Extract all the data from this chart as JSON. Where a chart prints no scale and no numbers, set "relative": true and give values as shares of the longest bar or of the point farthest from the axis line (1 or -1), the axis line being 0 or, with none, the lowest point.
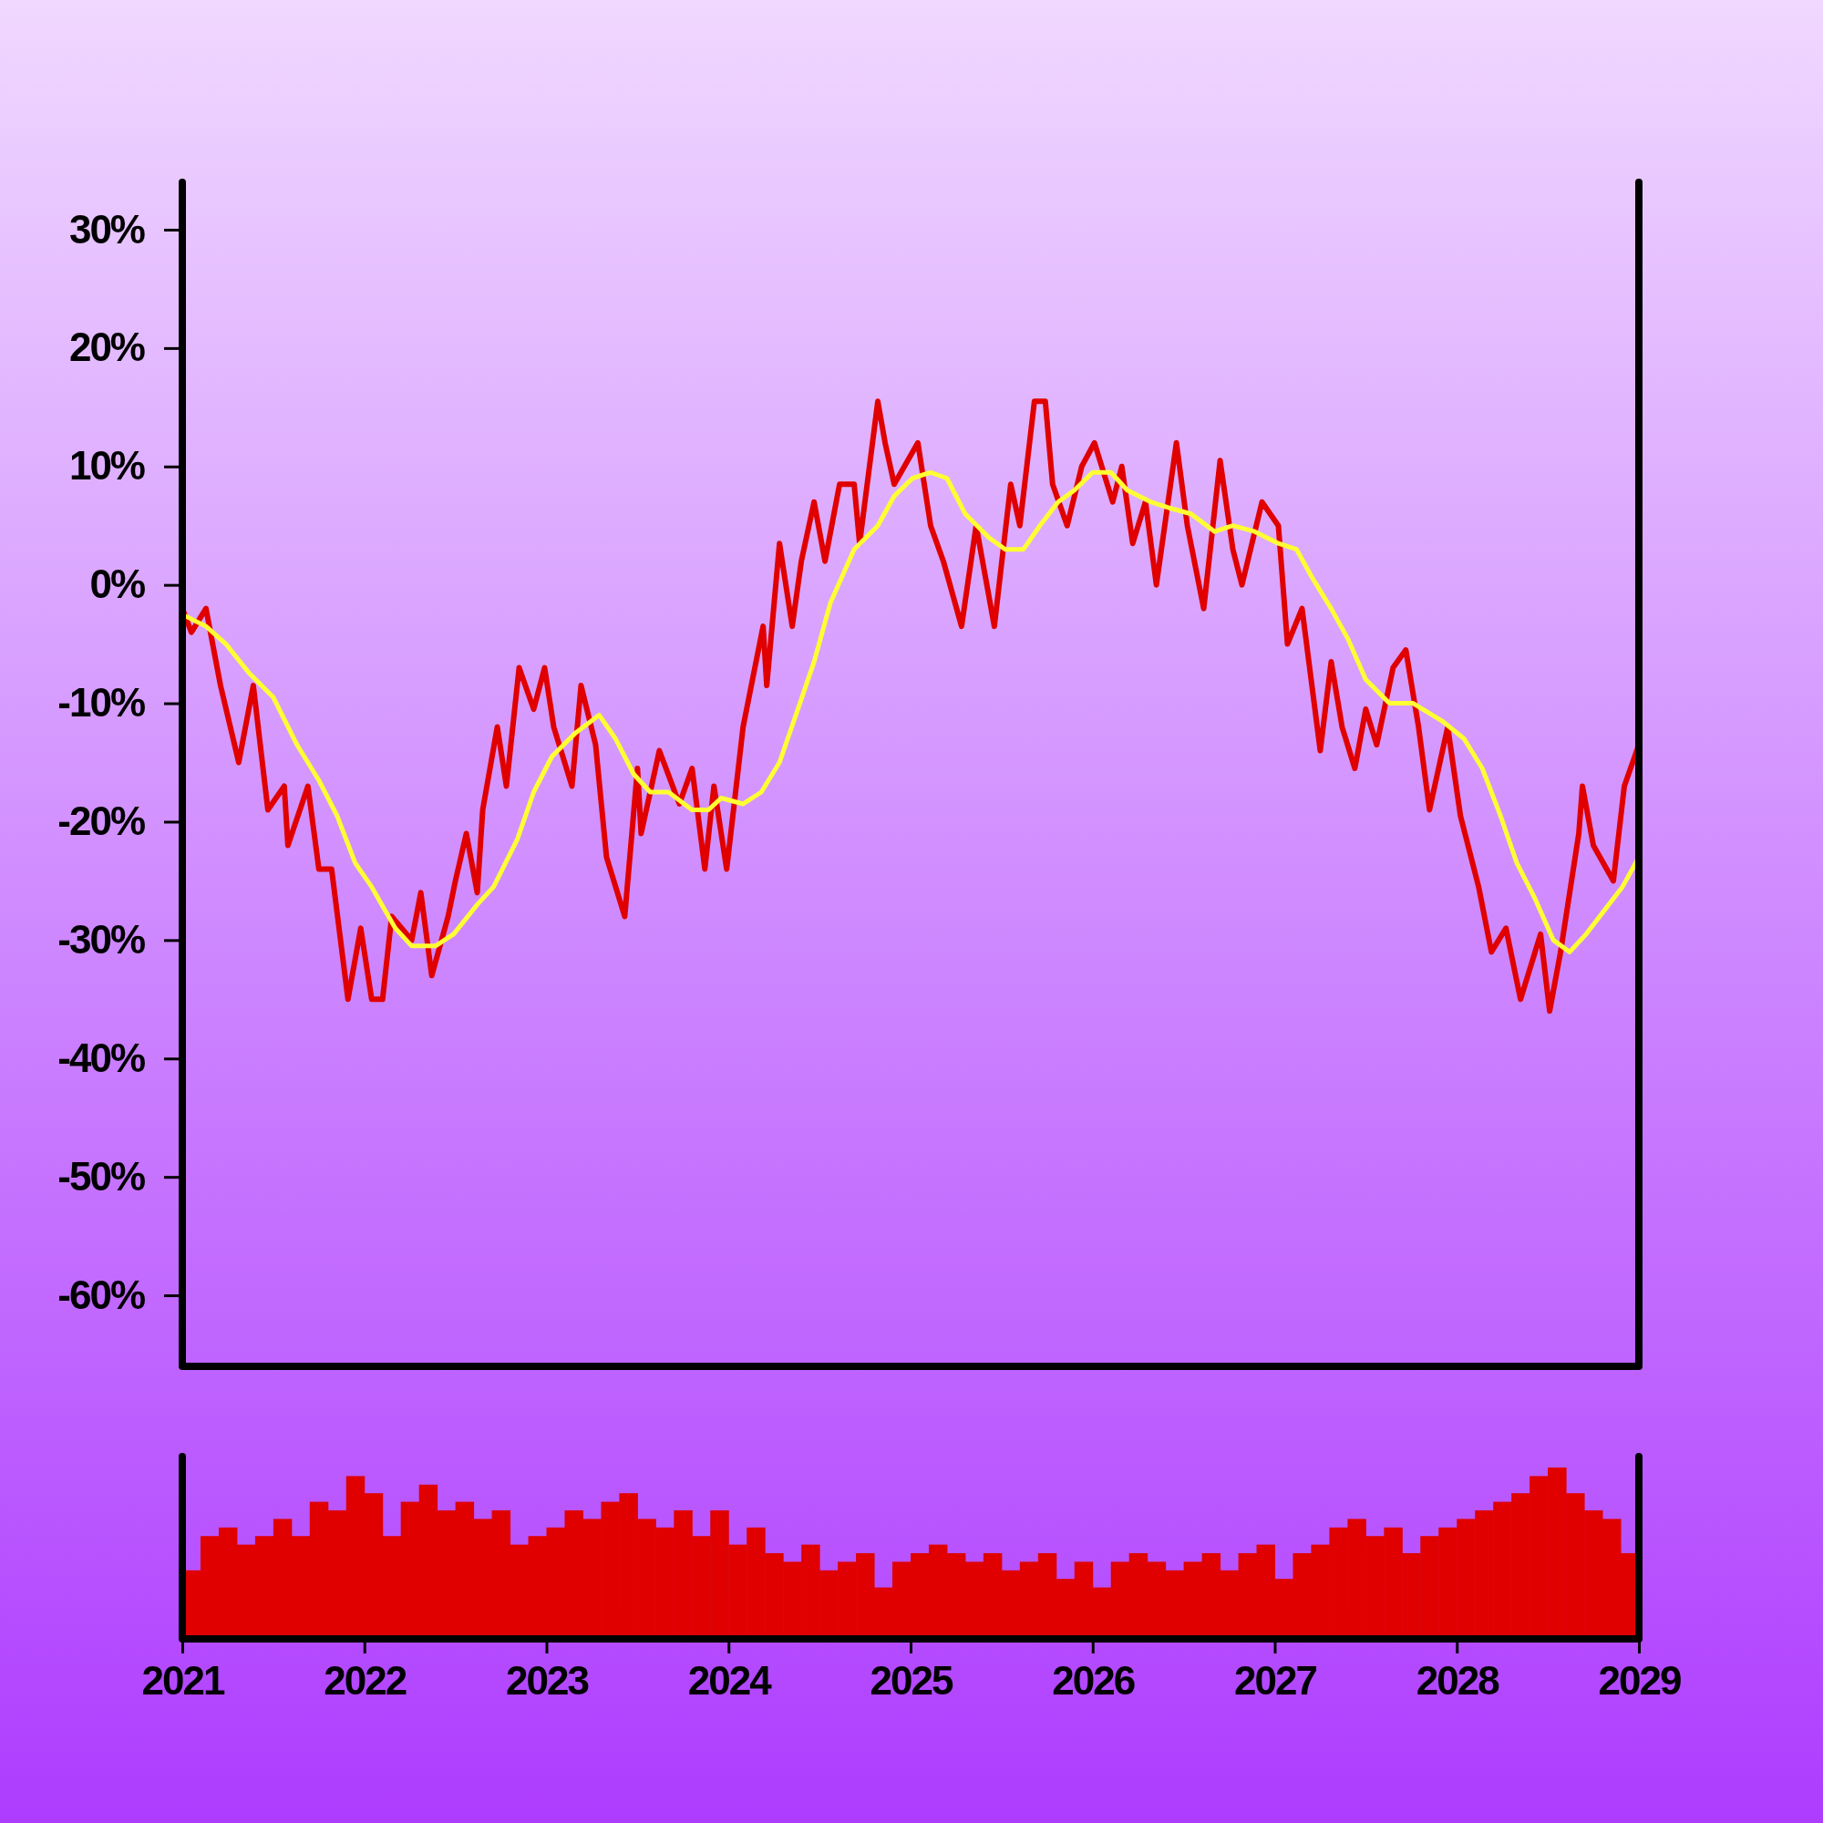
{
  "chart_data": [
    {
      "type": "line",
      "xlim": [
        2021,
        2029
      ],
      "ylim": [
        -66,
        34
      ],
      "yticks": [
        {
          "value": 30,
          "label": "30%"
        },
        {
          "value": 20,
          "label": "20%"
        },
        {
          "value": 10,
          "label": "10%"
        },
        {
          "value": 0,
          "label": "0%"
        },
        {
          "value": -10,
          "label": "-10%"
        },
        {
          "value": -20,
          "label": "-20%"
        },
        {
          "value": -30,
          "label": "-30%"
        },
        {
          "value": -40,
          "label": "-40%"
        },
        {
          "value": -50,
          "label": "-50%"
        },
        {
          "value": -60,
          "label": "-60%"
        }
      ],
      "tick_labels": "y",
      "grid": false,
      "marker": "none",
      "line_style": "solid",
      "series": [
        {
          "color": "#e00000",
          "x": [
            2021.0,
            2021.05,
            2021.13,
            2021.21,
            2021.31,
            2021.39,
            2021.47,
            2021.56,
            2021.58,
            2021.69,
            2021.75,
            2021.82,
            2021.91,
            2021.98,
            2022.04,
            2022.1,
            2022.15,
            2022.26,
            2022.31,
            2022.37,
            2022.46,
            2022.5,
            2022.56,
            2022.62,
            2022.65,
            2022.73,
            2022.78,
            2022.85,
            2022.93,
            2022.99,
            2023.04,
            2023.14,
            2023.19,
            2023.27,
            2023.33,
            2023.43,
            2023.5,
            2023.52,
            2023.62,
            2023.73,
            2023.8,
            2023.87,
            2023.92,
            2023.99,
            2024.08,
            2024.19,
            2024.21,
            2024.28,
            2024.35,
            2024.4,
            2024.47,
            2024.53,
            2024.61,
            2024.69,
            2024.72,
            2024.82,
            2024.86,
            2024.91,
            2025.04,
            2025.11,
            2025.18,
            2025.28,
            2025.36,
            2025.46,
            2025.55,
            2025.6,
            2025.68,
            2025.74,
            2025.78,
            2025.86,
            2025.94,
            2026.01,
            2026.11,
            2026.16,
            2026.22,
            2026.29,
            2026.35,
            2026.46,
            2026.52,
            2026.61,
            2026.7,
            2026.77,
            2026.82,
            2026.93,
            2027.02,
            2027.07,
            2027.15,
            2027.25,
            2027.31,
            2027.37,
            2027.44,
            2027.5,
            2027.56,
            2027.65,
            2027.72,
            2027.79,
            2027.85,
            2027.95,
            2028.02,
            2028.12,
            2028.19,
            2028.27,
            2028.35,
            2028.46,
            2028.51,
            2028.57,
            2028.67,
            2028.69,
            2028.75,
            2028.86,
            2028.92,
            2029.0
          ],
          "values": [
            -2,
            -4,
            -2,
            -8.5,
            -15,
            -8.5,
            -19,
            -17,
            -22,
            -17,
            -24,
            -24,
            -35,
            -29,
            -35,
            -35,
            -28,
            -30,
            -26,
            -33,
            -28,
            -25,
            -21,
            -26,
            -19,
            -12,
            -17,
            -7,
            -10.5,
            -7,
            -12,
            -17,
            -8.5,
            -13.5,
            -23,
            -28,
            -15.5,
            -21,
            -14,
            -18.5,
            -15.5,
            -24,
            -17,
            -24,
            -12,
            -3.5,
            -8.5,
            3.5,
            -3.5,
            2,
            7,
            2,
            8.5,
            8.5,
            3.5,
            15.5,
            12,
            8.5,
            12,
            5,
            2,
            -3.5,
            5,
            -3.5,
            8.5,
            5,
            15.5,
            15.5,
            8.5,
            5,
            10,
            12,
            7,
            10,
            3.5,
            7,
            0,
            12,
            5,
            -2,
            10.5,
            3,
            0,
            7,
            5,
            -5,
            -2,
            -14,
            -6.5,
            -12,
            -15.5,
            -10.5,
            -13.5,
            -7,
            -5.5,
            -12,
            -19,
            -12,
            -19.5,
            -25.5,
            -31,
            -29,
            -35,
            -29.5,
            -36,
            -31,
            -21,
            -17,
            -22,
            -25,
            -17,
            -13.5
          ]
        },
        {
          "color": "#ffff33",
          "x": [
            2021.0,
            2021.13,
            2021.24,
            2021.37,
            2021.5,
            2021.63,
            2021.75,
            2021.85,
            2021.95,
            2022.04,
            2022.17,
            2022.26,
            2022.39,
            2022.49,
            2022.62,
            2022.71,
            2022.84,
            2022.93,
            2023.03,
            2023.16,
            2023.29,
            2023.38,
            2023.48,
            2023.57,
            2023.67,
            2023.8,
            2023.89,
            2023.96,
            2024.08,
            2024.18,
            2024.28,
            2024.37,
            2024.47,
            2024.56,
            2024.69,
            2024.82,
            2024.91,
            2025.01,
            2025.11,
            2025.2,
            2025.3,
            2025.43,
            2025.52,
            2025.62,
            2025.71,
            2025.81,
            2025.9,
            2026.0,
            2026.1,
            2026.19,
            2026.32,
            2026.42,
            2026.54,
            2026.67,
            2026.77,
            2026.89,
            2027.02,
            2027.12,
            2027.21,
            2027.31,
            2027.4,
            2027.5,
            2027.63,
            2027.76,
            2027.92,
            2028.04,
            2028.14,
            2028.24,
            2028.33,
            2028.43,
            2028.53,
            2028.62,
            2028.71,
            2028.81,
            2028.91,
            2029.0
          ],
          "values": [
            -2.5,
            -3.5,
            -5,
            -7.5,
            -9.5,
            -13.5,
            -16.5,
            -19.5,
            -23.5,
            -25.5,
            -29,
            -30.5,
            -30.5,
            -29.5,
            -27,
            -25.5,
            -21.5,
            -17.5,
            -14.5,
            -12.5,
            -11,
            -13,
            -16,
            -17.5,
            -17.5,
            -19,
            -19,
            -18,
            -18.5,
            -17.5,
            -15,
            -11,
            -6.5,
            -1.5,
            3,
            5,
            7.5,
            9,
            9.5,
            9,
            6,
            4,
            3,
            3,
            5,
            7,
            8,
            9.5,
            9.5,
            8,
            7,
            6.5,
            6,
            4.5,
            5,
            4.5,
            3.5,
            3,
            0.5,
            -2,
            -4.5,
            -8,
            -10,
            -10,
            -11.5,
            -13,
            -15.5,
            -19.5,
            -23.5,
            -26.5,
            -30,
            -31,
            -29.5,
            -27.5,
            -25.5,
            -23
          ]
        }
      ]
    },
    {
      "type": "bar",
      "relative": true,
      "xlim": [
        2021,
        2029
      ],
      "xticks": [
        2021,
        2022,
        2023,
        2024,
        2025,
        2026,
        2027,
        2028,
        2029
      ],
      "tick_labels": "x",
      "color": "#e00000",
      "x": [
        2021.05,
        2021.15,
        2021.25,
        2021.35,
        2021.45,
        2021.55,
        2021.65,
        2021.75,
        2021.85,
        2021.95,
        2022.05,
        2022.15,
        2022.25,
        2022.35,
        2022.45,
        2022.55,
        2022.65,
        2022.75,
        2022.85,
        2022.95,
        2023.05,
        2023.15,
        2023.25,
        2023.35,
        2023.45,
        2023.55,
        2023.65,
        2023.75,
        2023.85,
        2023.95,
        2024.05,
        2024.15,
        2024.25,
        2024.35,
        2024.45,
        2024.55,
        2024.65,
        2024.75,
        2024.85,
        2024.95,
        2025.05,
        2025.15,
        2025.25,
        2025.35,
        2025.45,
        2025.55,
        2025.65,
        2025.75,
        2025.85,
        2025.95,
        2026.05,
        2026.15,
        2026.25,
        2026.35,
        2026.45,
        2026.55,
        2026.65,
        2026.75,
        2026.85,
        2026.95,
        2027.05,
        2027.15,
        2027.25,
        2027.35,
        2027.45,
        2027.55,
        2027.65,
        2027.75,
        2027.85,
        2027.95,
        2028.05,
        2028.15,
        2028.25,
        2028.35,
        2028.45,
        2028.55,
        2028.65,
        2028.75,
        2028.85,
        2028.95
      ],
      "values": [
        0.4,
        0.6,
        0.65,
        0.55,
        0.6,
        0.7,
        0.6,
        0.8,
        0.75,
        0.95,
        0.85,
        0.6,
        0.8,
        0.9,
        0.75,
        0.8,
        0.7,
        0.75,
        0.55,
        0.6,
        0.65,
        0.75,
        0.7,
        0.8,
        0.85,
        0.7,
        0.65,
        0.75,
        0.6,
        0.75,
        0.55,
        0.65,
        0.5,
        0.45,
        0.55,
        0.4,
        0.45,
        0.5,
        0.3,
        0.45,
        0.5,
        0.55,
        0.5,
        0.45,
        0.5,
        0.4,
        0.45,
        0.5,
        0.35,
        0.45,
        0.3,
        0.45,
        0.5,
        0.45,
        0.4,
        0.45,
        0.5,
        0.4,
        0.5,
        0.55,
        0.35,
        0.5,
        0.55,
        0.65,
        0.7,
        0.6,
        0.65,
        0.5,
        0.6,
        0.65,
        0.7,
        0.75,
        0.8,
        0.85,
        0.95,
        1,
        0.85,
        0.75,
        0.7,
        0.5
      ]
    }
  ]
}
